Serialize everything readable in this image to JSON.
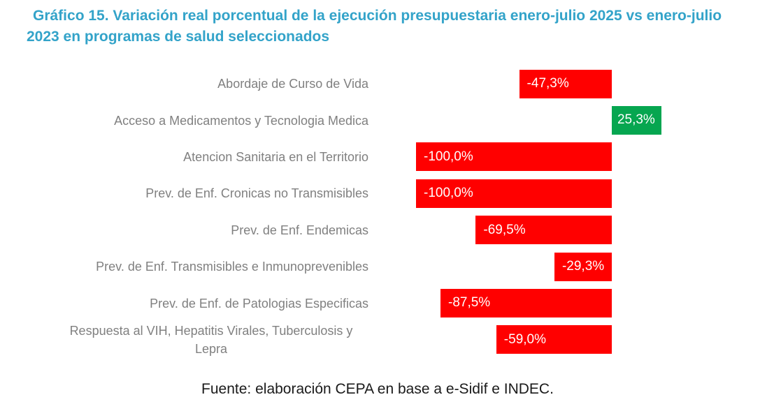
{
  "title": "Gráfico 15. Variación real porcentual de la ejecución presupuestaria enero-julio 2025 vs enero-julio 2023 en programas de salud seleccionados",
  "source": "Fuente: elaboración CEPA en base a e-Sidif e INDEC.",
  "colors": {
    "title_text": "#33A3C9",
    "bar_negative": "#FF0000",
    "bar_positive": "#06A650",
    "category_label": "#808080",
    "value_label": "#FFFFFF",
    "source_text": "#1A1A1A"
  },
  "chart_data": {
    "type": "bar",
    "orientation": "horizontal",
    "title": "Gráfico 15. Variación real porcentual de la ejecución presupuestaria enero-julio 2025 vs enero-julio 2023 en programas de salud seleccionados",
    "xlabel": "",
    "ylabel": "",
    "xlim": [
      -100,
      25.3
    ],
    "grid": false,
    "legend": "none",
    "data_labels": "inside-end",
    "categories": [
      "Abordaje de Curso de Vida",
      "Acceso a Medicamentos y Tecnologia Medica",
      "Atencion Sanitaria en el Territorio",
      "Prev. de Enf. Cronicas no Transmisibles",
      "Prev. de Enf. Endemicas",
      "Prev. de Enf. Transmisibles e Inmunoprevenibles",
      "Prev. de Enf. de Patologias Especificas",
      "Respuesta al VIH, Hepatitis Virales, Tuberculosis y Lepra"
    ],
    "values": [
      -47.3,
      25.3,
      -100.0,
      -100.0,
      -69.5,
      -29.3,
      -87.5,
      -59.0
    ],
    "value_labels": [
      "-47,3%",
      "25,3%",
      "-100,0%",
      "-100,0%",
      "-69,5%",
      "-29,3%",
      "-87,5%",
      "-59,0%"
    ]
  }
}
